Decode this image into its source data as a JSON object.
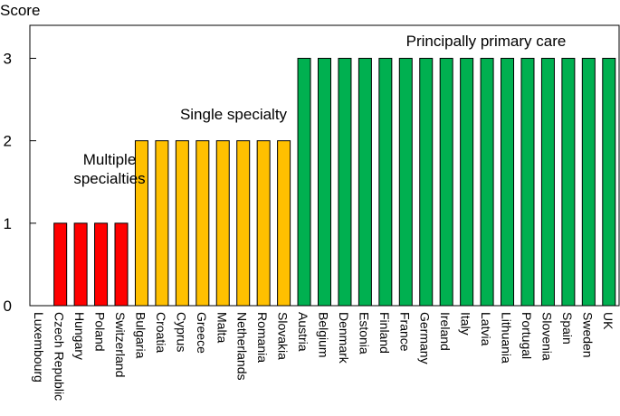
{
  "chart_data": {
    "type": "bar",
    "title": "",
    "ylabel": "Score",
    "xlabel": "",
    "ylim": [
      0,
      3.4
    ],
    "yticks": [
      0,
      1,
      2,
      3
    ],
    "grid": false,
    "categories": [
      "Luxembourg",
      "Czech Republic",
      "Hungary",
      "Poland",
      "Switzerland",
      "Bulgaria",
      "Croatia",
      "Cyprus",
      "Greece",
      "Malta",
      "Netherlands",
      "Romania",
      "Slovakia",
      "Austria",
      "Belgium",
      "Denmark",
      "Estonia",
      "Finland",
      "France",
      "Germany",
      "Ireland",
      "Italy",
      "Latvia",
      "Lithuania",
      "Portugal",
      "Slovenia",
      "Spain",
      "Sweden",
      "UK"
    ],
    "values": [
      0,
      1,
      1,
      1,
      1,
      2,
      2,
      2,
      2,
      2,
      2,
      2,
      2,
      3,
      3,
      3,
      3,
      3,
      3,
      3,
      3,
      3,
      3,
      3,
      3,
      3,
      3,
      3,
      3
    ],
    "groups": [
      {
        "name": "Multiple specialties",
        "label_lines": [
          "Multiple",
          "specialties"
        ],
        "color": "#ff0000",
        "range": [
          1,
          4
        ]
      },
      {
        "name": "Single specialty",
        "label_lines": [
          "Single specialty"
        ],
        "color": "#ffc000",
        "range": [
          5,
          12
        ]
      },
      {
        "name": "Principally primary care",
        "label_lines": [
          "Principally primary care"
        ],
        "color": "#00b050",
        "range": [
          13,
          28
        ]
      }
    ]
  }
}
